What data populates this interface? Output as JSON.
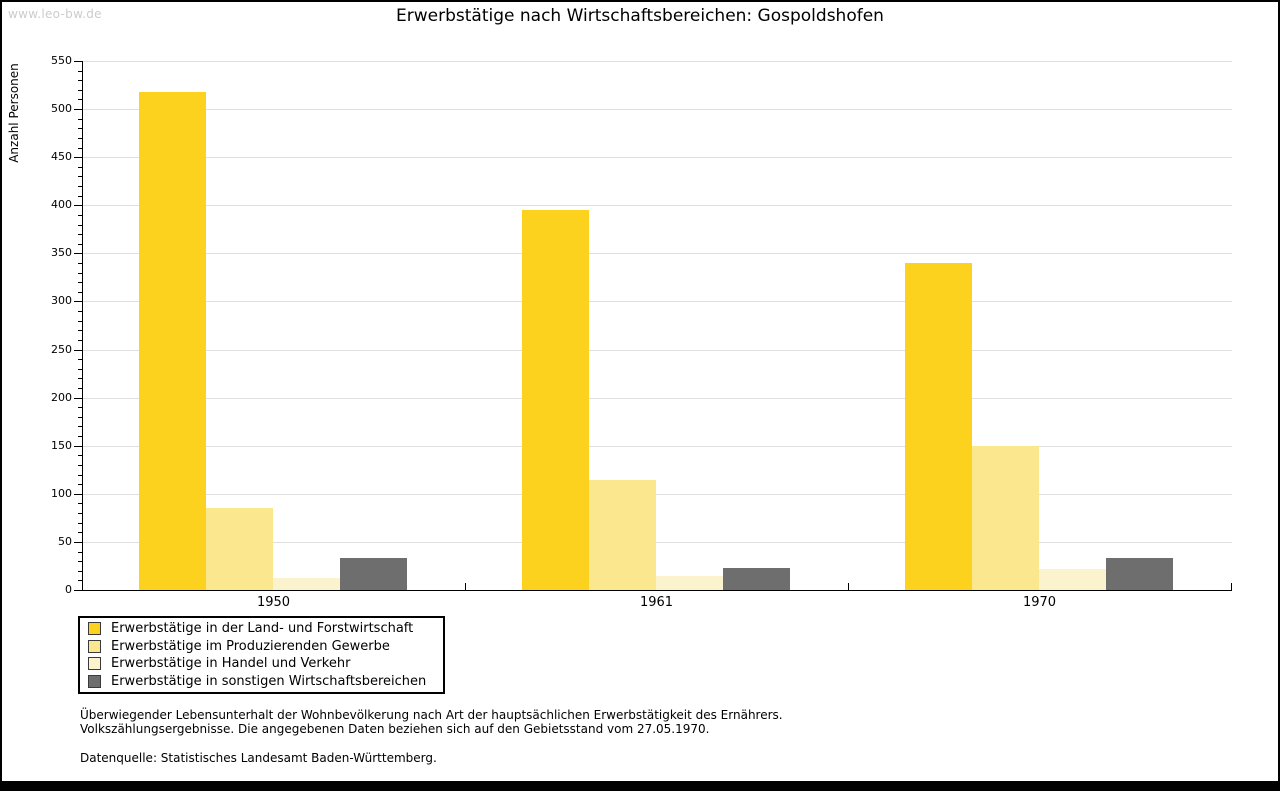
{
  "watermark": "www.leo-bw.de",
  "title": "Erwerbstätige nach Wirtschaftsbereichen: Gospoldshofen",
  "chart_data": {
    "type": "bar",
    "title": "Erwerbstätige nach Wirtschaftsbereichen: Gospoldshofen",
    "xlabel": "",
    "ylabel": "Anzahl Personen",
    "categories": [
      "1950",
      "1961",
      "1970"
    ],
    "series": [
      {
        "name": "Erwerbstätige in der Land- und Forstwirtschaft",
        "color": "#FCD21E",
        "values": [
          518,
          395,
          340
        ]
      },
      {
        "name": "Erwerbstätige im Produzierenden Gewerbe",
        "color": "#FBE88E",
        "values": [
          85,
          114,
          150
        ]
      },
      {
        "name": "Erwerbstätige in Handel und Verkehr",
        "color": "#FBF3CE",
        "values": [
          12,
          15,
          22
        ]
      },
      {
        "name": "Erwerbstätige in sonstigen Wirtschaftsbereichen",
        "color": "#6E6E6E",
        "values": [
          33,
          23,
          33
        ]
      }
    ],
    "ylim": [
      0,
      550
    ],
    "ytick_step": 50,
    "minor_tick_step": 10,
    "grid": "horizontal",
    "grid_color": "#dfdfdf",
    "axis_color": "#000000",
    "legend_position": "bottom-left"
  },
  "footer": {
    "line1": "Überwiegender Lebensunterhalt der Wohnbevölkerung nach Art der hauptsächlichen Erwerbstätigkeit des Ernährers.",
    "line2": "Volkszählungsergebnisse. Die angegebenen Daten beziehen sich auf den Gebietsstand vom 27.05.1970.",
    "source": "Datenquelle: Statistisches Landesamt Baden-Württemberg."
  }
}
